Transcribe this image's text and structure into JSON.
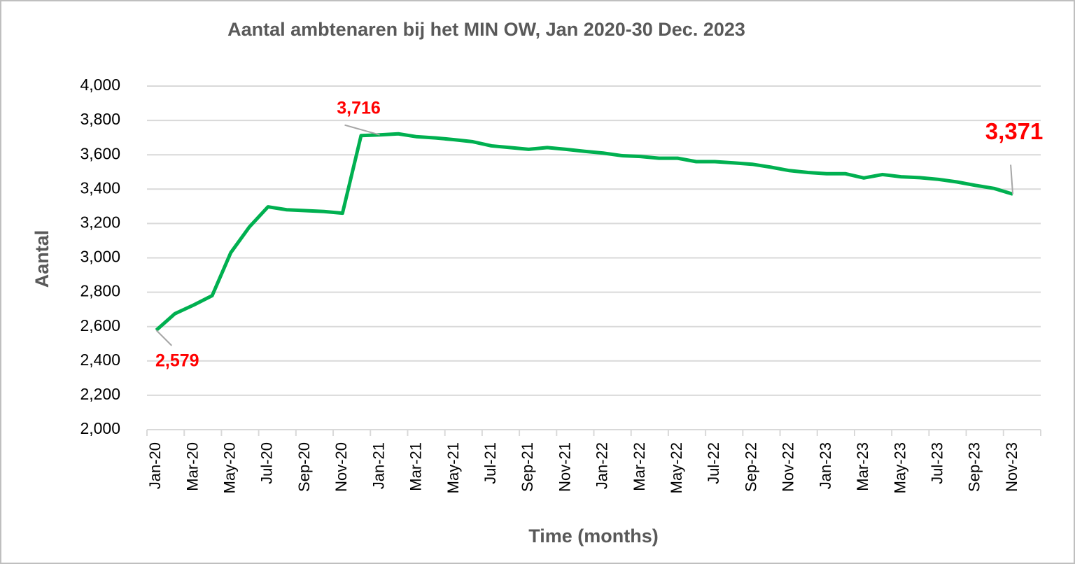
{
  "chart_data": {
    "type": "line",
    "title": "Aantal ambtenaren bij het MIN OW, Jan 2020-30 Dec. 2023",
    "y_label": "Aantal",
    "x_label": "Time (months)",
    "categories": [
      "Jan-20",
      null,
      "Mar-20",
      null,
      "May-20",
      null,
      "Jul-20",
      null,
      "Sep-20",
      null,
      "Nov-20",
      null,
      "Jan-21",
      null,
      "Mar-21",
      null,
      "May-21",
      null,
      "Jul-21",
      null,
      "Sep-21",
      null,
      "Nov-21",
      null,
      "Jan-22",
      null,
      "Mar-22",
      null,
      "May-22",
      null,
      "Jul-22",
      null,
      "Sep-22",
      null,
      "Nov-22",
      null,
      "Jan-23",
      null,
      "Mar-23",
      null,
      "May-23",
      null,
      "Jul-23",
      null,
      "Sep-23",
      null,
      "Nov-23",
      null
    ],
    "series": [
      {
        "name": "Aantal",
        "color": "#00b050",
        "values": [
          2579,
          2675,
          2725,
          2780,
          3030,
          3180,
          3297,
          3280,
          3275,
          3270,
          3260,
          3712,
          3716,
          3722,
          3705,
          3698,
          3688,
          3676,
          3652,
          3642,
          3632,
          3642,
          3632,
          3620,
          3610,
          3595,
          3590,
          3580,
          3580,
          3560,
          3560,
          3553,
          3545,
          3528,
          3508,
          3497,
          3490,
          3490,
          3465,
          3485,
          3472,
          3467,
          3457,
          3442,
          3422,
          3404,
          3371,
          null
        ],
        "value_labels": [
          "2,579",
          null,
          null,
          null,
          null,
          null,
          null,
          null,
          null,
          null,
          null,
          null,
          "3,716",
          null,
          null,
          null,
          null,
          null,
          null,
          null,
          null,
          null,
          null,
          null,
          null,
          null,
          null,
          null,
          null,
          null,
          null,
          null,
          null,
          null,
          null,
          null,
          null,
          null,
          null,
          null,
          null,
          null,
          null,
          null,
          null,
          null,
          "3,371",
          null
        ]
      }
    ],
    "ylim": [
      2000,
      4000
    ],
    "yticks": [
      {
        "value": 2000,
        "label": "2,000"
      },
      {
        "value": 2200,
        "label": "2,200"
      },
      {
        "value": 2400,
        "label": "2,400"
      },
      {
        "value": 2600,
        "label": "2,600"
      },
      {
        "value": 2800,
        "label": "2,800"
      },
      {
        "value": 3000,
        "label": "3,000"
      },
      {
        "value": 3200,
        "label": "3,200"
      },
      {
        "value": 3400,
        "label": "3,400"
      },
      {
        "value": 3600,
        "label": "3,600"
      },
      {
        "value": 3800,
        "label": "3,800"
      },
      {
        "value": 4000,
        "label": "4,000"
      }
    ],
    "grid": true
  }
}
